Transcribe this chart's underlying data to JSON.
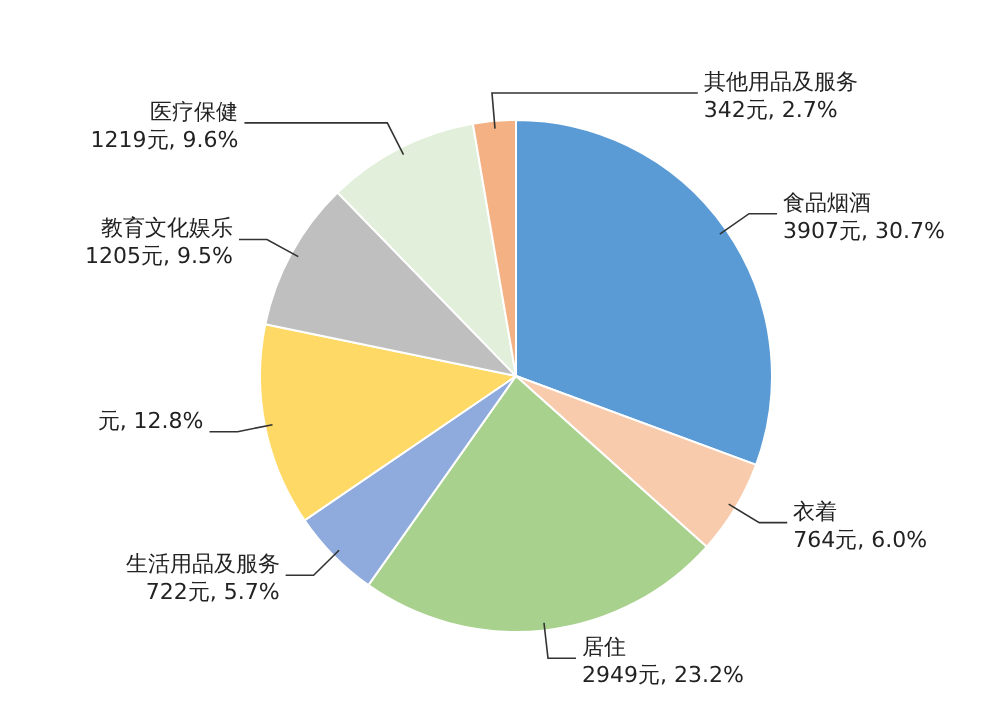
{
  "chart_data": {
    "type": "pie",
    "categories": [
      "食品烟酒",
      "衣着",
      "居住",
      "生活用品及服务",
      null,
      "教育文化娱乐",
      "医疗保健",
      "其他用品及服务"
    ],
    "values": [
      30.7,
      6.0,
      23.2,
      5.7,
      12.8,
      9.5,
      9.6,
      2.7
    ],
    "colors": [
      "#5b9bd5",
      "#f8cbad",
      "#a9d18e",
      "#8faadc",
      "#ffd966",
      "#bfbfbf",
      "#e2efda",
      "#f4b183"
    ],
    "value_labels": [
      "3907元, 30.7%",
      "764元, 6.0%",
      "2949元, 23.2%",
      "722元, 5.7%",
      "元, 12.8%",
      "1205元, 9.5%",
      "1219元, 9.6%",
      "342元, 2.7%"
    ]
  }
}
